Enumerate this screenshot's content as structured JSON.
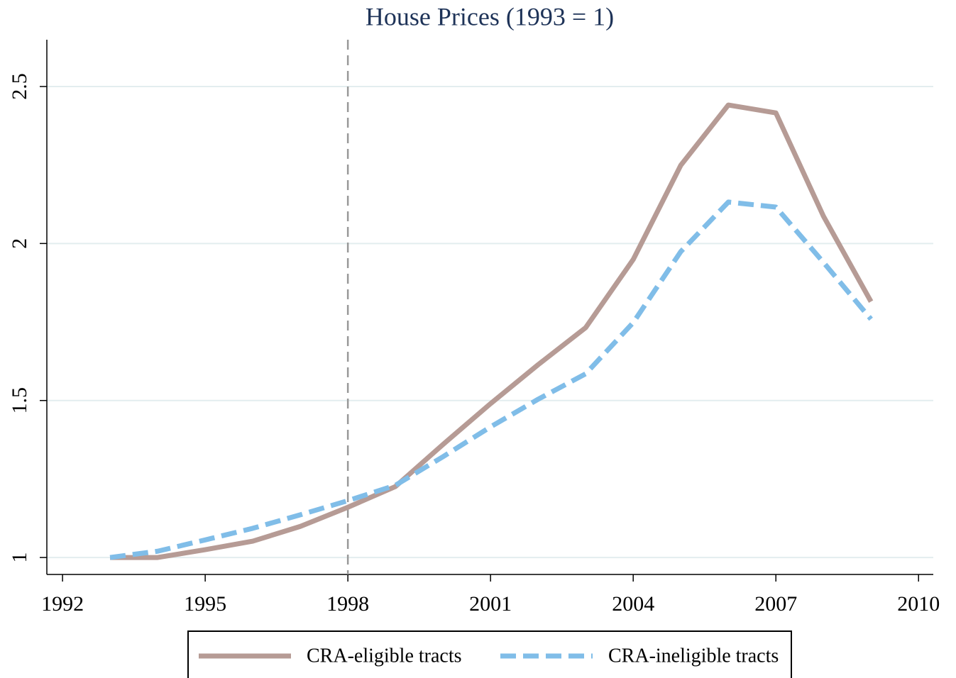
{
  "chart_data": {
    "type": "line",
    "title": "House Prices (1993 = 1)",
    "x": [
      1993,
      1994,
      1995,
      1996,
      1997,
      1998,
      1999,
      2000,
      2001,
      2002,
      2003,
      2004,
      2005,
      2006,
      2007,
      2008,
      2009
    ],
    "series": [
      {
        "name": "CRA-eligible tracts",
        "color": "#b69b95",
        "dashed": false,
        "values": [
          1.0,
          1.0,
          1.025,
          1.052,
          1.099,
          1.16,
          1.226,
          1.36,
          1.49,
          1.614,
          1.732,
          1.949,
          2.249,
          2.441,
          2.416,
          2.087,
          1.815
        ]
      },
      {
        "name": "CRA-ineligible tracts",
        "color": "#80bde8",
        "dashed": true,
        "values": [
          1.0,
          1.02,
          1.056,
          1.093,
          1.136,
          1.181,
          1.23,
          1.321,
          1.416,
          1.504,
          1.585,
          1.748,
          1.974,
          2.132,
          2.116,
          1.94,
          1.759
        ]
      }
    ],
    "xlim": [
      1991.67,
      2010.31
    ],
    "xticks": [
      1992,
      1995,
      1998,
      2001,
      2004,
      2007,
      2010
    ],
    "ylim": [
      0.946,
      2.649
    ],
    "yticks": [
      1,
      1.5,
      2,
      2.5
    ],
    "xline": 1998,
    "grid": true,
    "legend": "bottom"
  }
}
